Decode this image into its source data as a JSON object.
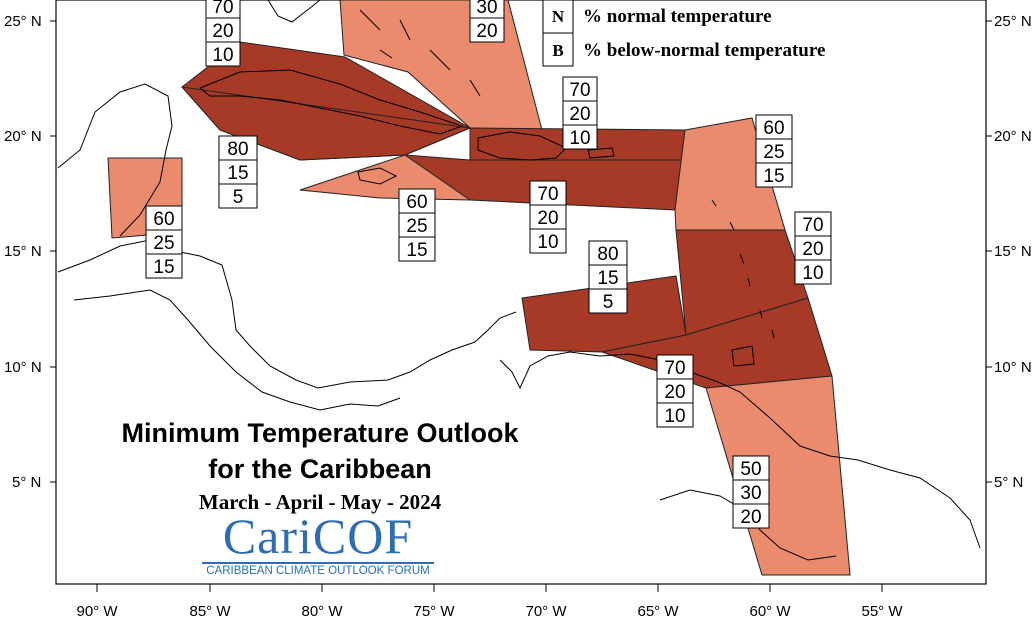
{
  "title": {
    "line1": "Minimum Temperature Outlook",
    "line2": "for the Caribbean",
    "season": "March - April - May - 2024"
  },
  "logo": {
    "name": "CariCOF",
    "tagline": "CARIBBEAN CLIMATE OUTLOOK FORUM"
  },
  "legend": [
    {
      "key": "N",
      "label": "% normal temperature"
    },
    {
      "key": "B",
      "label": "% below-normal temperature"
    }
  ],
  "axes": {
    "longitude_ticks": [
      "90° W",
      "85° W",
      "80° W",
      "75° W",
      "70° W",
      "65° W",
      "60° W",
      "55° W"
    ],
    "latitude_ticks": [
      "25° N",
      "20° N",
      "15° N",
      "10° N",
      "5° N"
    ]
  },
  "colors": {
    "dark_red": "#a63a26",
    "light_salmon": "#ea8b6e",
    "map_line": "#000000"
  },
  "forecast_boxes": [
    {
      "id": "bahamas-west",
      "values": [
        "70",
        "20",
        "10"
      ]
    },
    {
      "id": "bahamas-east",
      "values": [
        "30",
        "20"
      ]
    },
    {
      "id": "hispaniola-north",
      "values": [
        "70",
        "20",
        "10"
      ]
    },
    {
      "id": "cuba-cayman",
      "values": [
        "80",
        "15",
        "5"
      ]
    },
    {
      "id": "belize",
      "values": [
        "60",
        "25",
        "15"
      ]
    },
    {
      "id": "jamaica",
      "values": [
        "60",
        "25",
        "15"
      ]
    },
    {
      "id": "hispaniola-south",
      "values": [
        "70",
        "20",
        "10"
      ]
    },
    {
      "id": "northern-leewards",
      "values": [
        "60",
        "25",
        "15"
      ]
    },
    {
      "id": "windwards",
      "values": [
        "70",
        "20",
        "10"
      ]
    },
    {
      "id": "abc-islands",
      "values": [
        "80",
        "15",
        "5"
      ]
    },
    {
      "id": "trinidad",
      "values": [
        "70",
        "20",
        "10"
      ]
    },
    {
      "id": "guianas",
      "values": [
        "50",
        "30",
        "20"
      ]
    }
  ]
}
